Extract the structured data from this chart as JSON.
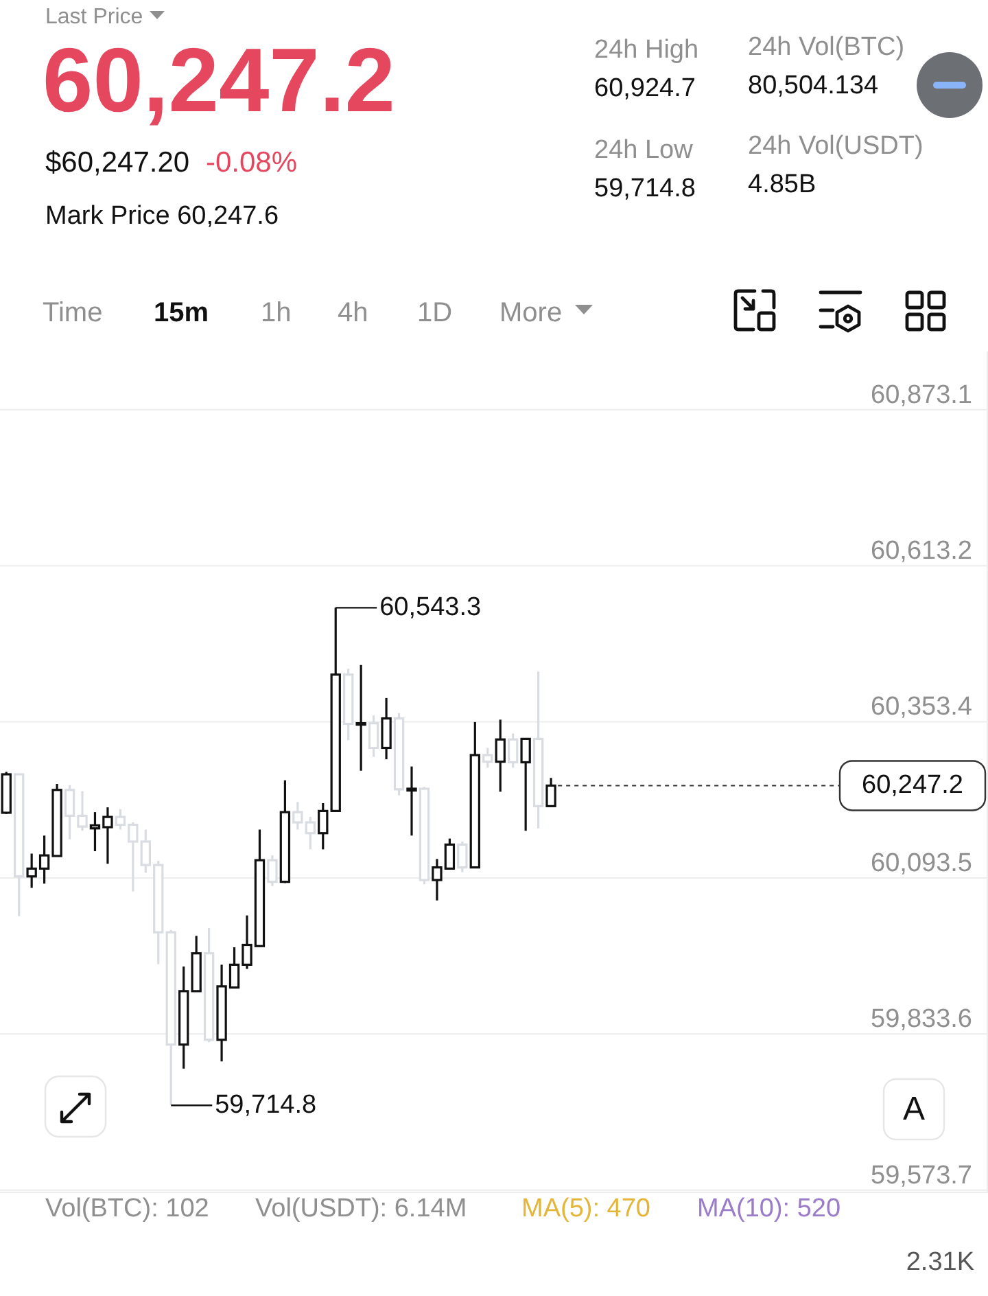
{
  "chart_data": [
    {
      "type": "other",
      "annotations": [
        "Last Price",
        "60,247.2",
        "$60,247.20",
        "-0.08%",
        "Mark Price 60,247.6",
        "24h High",
        "60,924.7",
        "24h Low",
        "59,714.8",
        "24h Vol(BTC)",
        "80,504.134",
        "24h Vol(USDT)",
        "4.85B",
        "Time",
        "15m",
        "1h",
        "4h",
        "1D",
        "More"
      ]
    },
    {
      "type": "candlestick",
      "categories": [
        null,
        null,
        null,
        null,
        null,
        null,
        null,
        null,
        null,
        null,
        null,
        null,
        null,
        null,
        null,
        null,
        null,
        null,
        null,
        null,
        null,
        null,
        null,
        null,
        null,
        null,
        null,
        null,
        null,
        null,
        null,
        null,
        null,
        null,
        null,
        null,
        null,
        null,
        null,
        null,
        null,
        null,
        null,
        null,
        null,
        null,
        null,
        null,
        null,
        null,
        null,
        null,
        null,
        null,
        null,
        null,
        null,
        null,
        null,
        null,
        null,
        null,
        null,
        null,
        null,
        null,
        null,
        null,
        null,
        null,
        null,
        null,
        null,
        null,
        null,
        null,
        null,
        null
      ],
      "ohlc": [
        [
          60202,
          60270,
          60200,
          60266
        ],
        [
          60266,
          60266,
          60030,
          60096
        ],
        [
          60096,
          60134,
          60077,
          60109
        ],
        [
          60109,
          60164,
          60084,
          60131
        ],
        [
          60130,
          60250,
          60130,
          60240
        ],
        [
          60240,
          60248,
          60158,
          60197
        ],
        [
          60197,
          60238,
          60172,
          60179
        ],
        [
          60176,
          60203,
          60138,
          60181
        ],
        [
          60178,
          60211,
          60117,
          60195
        ],
        [
          60195,
          60208,
          60174,
          60182
        ],
        [
          60182,
          60186,
          60071,
          60154
        ],
        [
          60154,
          60174,
          60102,
          60115
        ],
        [
          60115,
          60122,
          59950,
          60003
        ],
        [
          60003,
          60007,
          59714.8,
          59816
        ],
        [
          59816,
          59946,
          59776,
          59905
        ],
        [
          59905,
          59997,
          59905,
          59968
        ],
        [
          59968,
          60010,
          59820,
          59824
        ],
        [
          59824,
          59949,
          59788,
          59913
        ],
        [
          59911,
          59978,
          59910,
          59949
        ],
        [
          59949,
          60031,
          59942,
          59982
        ],
        [
          59980,
          60174,
          59980,
          60123
        ],
        [
          60123,
          60131,
          60080,
          60087
        ],
        [
          60087,
          60256,
          60085,
          60203
        ],
        [
          60203,
          60220,
          60174,
          60186
        ],
        [
          60186,
          60195,
          60141,
          60168
        ],
        [
          60168,
          60218,
          60141,
          60205
        ],
        [
          60205,
          60543.3,
          60205,
          60432
        ],
        [
          60432,
          60442,
          60323,
          60350
        ],
        [
          60349,
          60448,
          60272,
          60351
        ],
        [
          60351,
          60364,
          60295,
          60310
        ],
        [
          60310,
          60393,
          60291,
          60359
        ],
        [
          60359,
          60368,
          60231,
          60241
        ],
        [
          60239,
          60279,
          60164,
          60242
        ],
        [
          60242,
          60245,
          60083,
          60090
        ],
        [
          60090,
          60125,
          60056,
          60111
        ],
        [
          60109,
          60159,
          60109,
          60149
        ],
        [
          60149,
          60154,
          60103,
          60111
        ],
        [
          60111,
          60353,
          60111,
          60298
        ],
        [
          60298,
          60310,
          60277,
          60287
        ],
        [
          60287,
          60357,
          60237,
          60324
        ],
        [
          60324,
          60334,
          60277,
          60286
        ],
        [
          60286,
          60325,
          60172,
          60325
        ],
        [
          60325,
          60437,
          60176,
          60213
        ],
        [
          60213,
          60260,
          60213,
          60247.2
        ],
        null,
        null,
        null,
        null,
        null,
        null,
        null,
        null,
        null,
        null,
        null,
        null,
        null,
        null,
        null,
        null,
        null,
        null,
        null,
        null,
        null,
        null,
        null,
        null,
        null,
        null,
        null,
        null,
        null,
        null,
        null,
        null,
        null,
        null
      ],
      "colors": [
        "#111111",
        "#d9dce1",
        "#111111",
        "#111111",
        "#111111",
        "#d9dce1",
        "#d9dce1",
        "#111111",
        "#111111",
        "#d9dce1",
        "#d9dce1",
        "#d9dce1",
        "#d9dce1",
        "#d9dce1",
        "#111111",
        "#111111",
        "#d9dce1",
        "#111111",
        "#111111",
        "#111111",
        "#111111",
        "#d9dce1",
        "#111111",
        "#d9dce1",
        "#d9dce1",
        "#111111",
        "#111111",
        "#d9dce1",
        "#111111",
        "#d9dce1",
        "#111111",
        "#d9dce1",
        "#111111",
        "#d9dce1",
        "#111111",
        "#111111",
        "#d9dce1",
        "#111111",
        "#d9dce1",
        "#111111",
        "#d9dce1",
        "#111111",
        "#d9dce1",
        "#111111",
        null,
        null,
        null,
        null,
        null,
        null,
        null,
        null,
        null,
        null,
        null,
        null,
        null,
        null,
        null,
        null,
        null,
        null,
        null,
        null,
        null,
        null,
        null,
        null,
        null,
        null,
        null,
        null,
        null,
        null,
        null,
        null,
        null,
        null
      ],
      "ylim": [
        59570,
        60970
      ],
      "yticks": [
        {
          "value": 59573.7,
          "label": "59,573.7"
        },
        {
          "value": 59833.6,
          "label": "59,833.6"
        },
        {
          "value": 60093.5,
          "label": "60,093.5"
        },
        {
          "value": 60353.4,
          "label": "60,353.4"
        },
        {
          "value": 60613.2,
          "label": "60,613.2"
        },
        {
          "value": 60873.1,
          "label": "60,873.1"
        }
      ],
      "grid": "y",
      "ref_lines": [
        {
          "axis": "y",
          "value": 60247.2,
          "label": "60,247.2",
          "line_style": "dashed",
          "color": "#333333"
        }
      ],
      "annotations": [
        "60,543.3",
        "59,714.8",
        "A",
        "Vol(BTC): 102",
        "Vol(USDT): 6.14M",
        "MA(5): 470",
        "MA(10): 520",
        "2.31K"
      ]
    }
  ]
}
